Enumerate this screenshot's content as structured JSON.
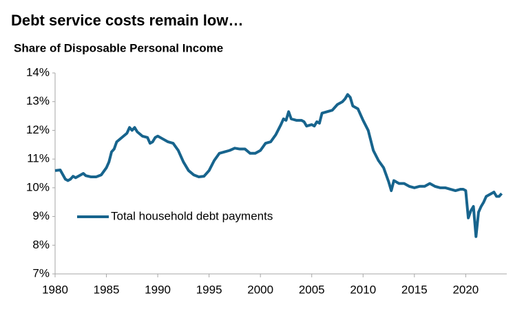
{
  "chart_data": {
    "type": "line",
    "title": "Debt service costs remain low…",
    "subtitle": "Share of Disposable Personal Income",
    "x": [
      1980.0,
      1980.5,
      1981.0,
      1981.25,
      1981.5,
      1981.75,
      1982.0,
      1982.5,
      1982.75,
      1983.0,
      1983.5,
      1984.0,
      1984.5,
      1985.0,
      1985.25,
      1985.5,
      1985.75,
      1986.0,
      1986.5,
      1987.0,
      1987.25,
      1987.5,
      1987.75,
      1988.0,
      1988.5,
      1989.0,
      1989.25,
      1989.5,
      1989.75,
      1990.0,
      1990.5,
      1991.0,
      1991.5,
      1992.0,
      1992.5,
      1993.0,
      1993.5,
      1994.0,
      1994.5,
      1995.0,
      1995.5,
      1996.0,
      1996.5,
      1997.0,
      1997.5,
      1998.0,
      1998.5,
      1999.0,
      1999.5,
      2000.0,
      2000.5,
      2001.0,
      2001.5,
      2002.0,
      2002.25,
      2002.5,
      2002.75,
      2003.0,
      2003.5,
      2004.0,
      2004.25,
      2004.5,
      2005.0,
      2005.25,
      2005.5,
      2005.75,
      2006.0,
      2006.5,
      2007.0,
      2007.5,
      2008.0,
      2008.25,
      2008.5,
      2008.75,
      2009.0,
      2009.5,
      2010.0,
      2010.5,
      2011.0,
      2011.5,
      2012.0,
      2012.25,
      2012.5,
      2012.75,
      2013.0,
      2013.5,
      2014.0,
      2014.5,
      2015.0,
      2015.5,
      2016.0,
      2016.5,
      2017.0,
      2017.5,
      2018.0,
      2018.5,
      2019.0,
      2019.5,
      2019.75,
      2020.0,
      2020.25,
      2020.5,
      2020.75,
      2021.0,
      2021.25,
      2021.5,
      2021.75,
      2022.0,
      2022.5,
      2022.75,
      2023.0,
      2023.25,
      2023.5
    ],
    "series": [
      {
        "name": "Total household debt payments",
        "color": "#17648d",
        "values": [
          10.6,
          10.62,
          10.3,
          10.25,
          10.3,
          10.4,
          10.35,
          10.45,
          10.5,
          10.42,
          10.38,
          10.38,
          10.45,
          10.7,
          10.9,
          11.25,
          11.35,
          11.6,
          11.75,
          11.9,
          12.1,
          12.0,
          12.1,
          11.95,
          11.8,
          11.75,
          11.55,
          11.6,
          11.75,
          11.8,
          11.7,
          11.6,
          11.55,
          11.3,
          10.9,
          10.6,
          10.45,
          10.38,
          10.4,
          10.6,
          10.95,
          11.2,
          11.25,
          11.3,
          11.38,
          11.35,
          11.35,
          11.2,
          11.2,
          11.3,
          11.55,
          11.6,
          11.85,
          12.2,
          12.4,
          12.35,
          12.65,
          12.4,
          12.35,
          12.35,
          12.3,
          12.15,
          12.2,
          12.15,
          12.3,
          12.25,
          12.6,
          12.65,
          12.7,
          12.9,
          13.0,
          13.1,
          13.25,
          13.15,
          12.85,
          12.75,
          12.35,
          12.0,
          11.3,
          10.95,
          10.7,
          10.45,
          10.2,
          9.9,
          10.25,
          10.15,
          10.15,
          10.05,
          10.0,
          10.05,
          10.05,
          10.15,
          10.05,
          10.0,
          10.0,
          9.95,
          9.9,
          9.95,
          9.95,
          9.9,
          8.95,
          9.2,
          9.35,
          8.3,
          9.15,
          9.35,
          9.5,
          9.7,
          9.8,
          9.85,
          9.7,
          9.7,
          9.8
        ]
      }
    ],
    "xlim": [
      1980,
      2024
    ],
    "xticks": [
      1980,
      1985,
      1990,
      1995,
      2000,
      2005,
      2010,
      2015,
      2020
    ],
    "ylim": [
      7,
      14
    ],
    "yticks": [
      {
        "value": 7,
        "label": "7%"
      },
      {
        "value": 8,
        "label": "8%"
      },
      {
        "value": 9,
        "label": "9%"
      },
      {
        "value": 10,
        "label": "10%"
      },
      {
        "value": 11,
        "label": "11%"
      },
      {
        "value": 12,
        "label": "12%"
      },
      {
        "value": 13,
        "label": "13%"
      },
      {
        "value": 14,
        "label": "14%"
      }
    ],
    "grid": false
  }
}
